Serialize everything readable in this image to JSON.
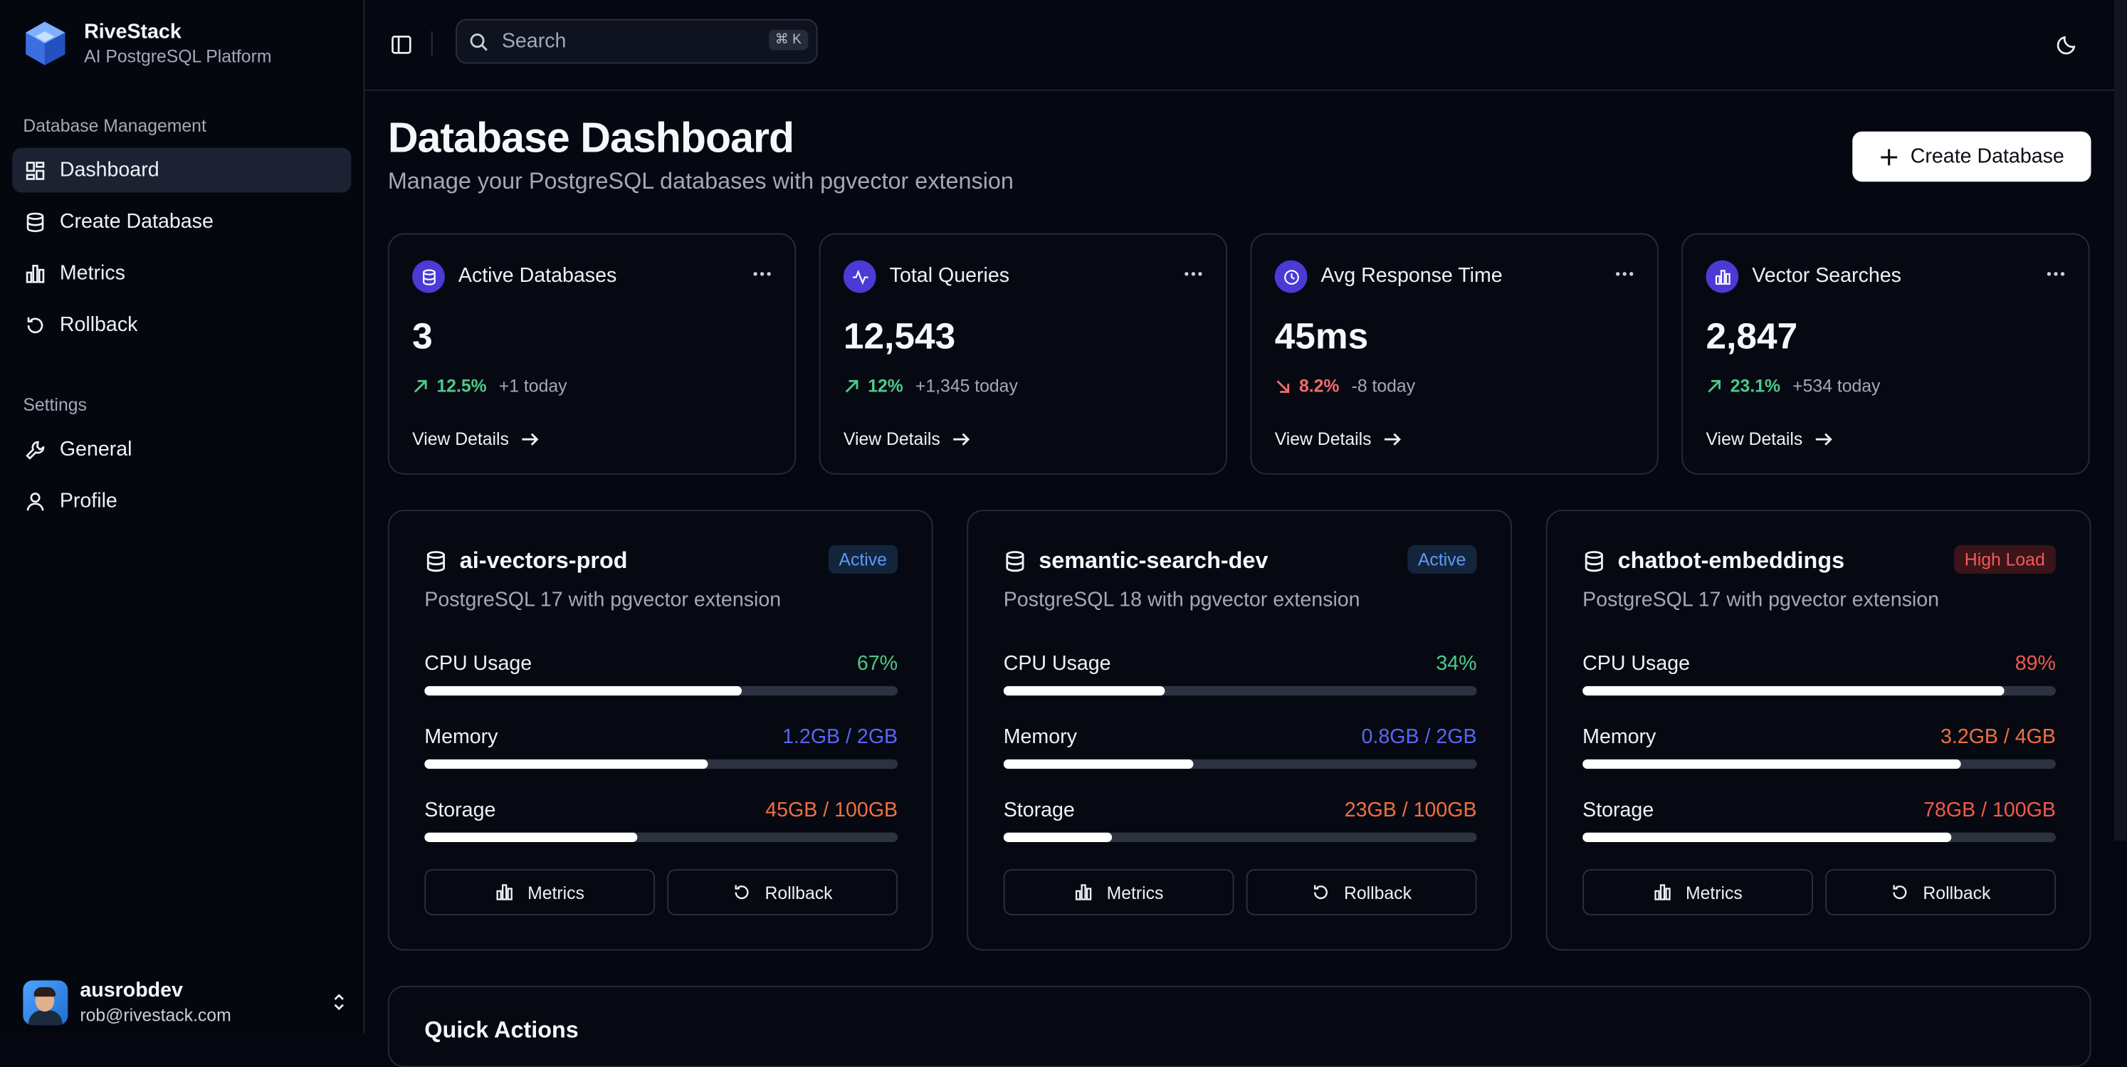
{
  "brand": {
    "name": "RiveStack",
    "subtitle": "AI PostgreSQL Platform"
  },
  "sidebar": {
    "sections": [
      {
        "title": "Database Management",
        "items": [
          {
            "label": "Dashboard",
            "icon": "dashboard-icon",
            "active": true
          },
          {
            "label": "Create Database",
            "icon": "database-icon"
          },
          {
            "label": "Metrics",
            "icon": "bar-chart-icon"
          },
          {
            "label": "Rollback",
            "icon": "rollback-icon"
          }
        ]
      },
      {
        "title": "Settings",
        "items": [
          {
            "label": "General",
            "icon": "wrench-icon"
          },
          {
            "label": "Profile",
            "icon": "user-icon"
          }
        ]
      }
    ]
  },
  "user": {
    "name": "ausrobdev",
    "email": "rob@rivestack.com"
  },
  "header": {
    "search_placeholder": "Search",
    "shortcut": "⌘ K"
  },
  "page": {
    "title": "Database Dashboard",
    "subtitle": "Manage your PostgreSQL databases with pgvector extension",
    "create_label": "Create Database"
  },
  "stats": [
    {
      "label": "Active Databases",
      "value": "3",
      "change": "12.5%",
      "direction": "up",
      "today": "+1 today",
      "link": "View Details",
      "icon": "database-icon"
    },
    {
      "label": "Total Queries",
      "value": "12,543",
      "change": "12%",
      "direction": "up",
      "today": "+1,345 today",
      "link": "View Details",
      "icon": "activity-icon"
    },
    {
      "label": "Avg Response Time",
      "value": "45ms",
      "change": "8.2%",
      "direction": "down",
      "today": "-8 today",
      "link": "View Details",
      "icon": "clock-icon"
    },
    {
      "label": "Vector Searches",
      "value": "2,847",
      "change": "23.1%",
      "direction": "up",
      "today": "+534 today",
      "link": "View Details",
      "icon": "bar-chart-icon"
    }
  ],
  "databases": [
    {
      "name": "ai-vectors-prod",
      "status": "Active",
      "description": "PostgreSQL 17 with pgvector extension",
      "metrics": [
        {
          "label": "CPU Usage",
          "value": "67%",
          "level": 0.67,
          "color": "green"
        },
        {
          "label": "Memory",
          "value": "1.2GB / 2GB",
          "level": 0.6,
          "color": "blue"
        },
        {
          "label": "Storage",
          "value": "45GB / 100GB",
          "level": 0.45,
          "color": "orange"
        }
      ],
      "metrics_label": "Metrics",
      "rollback_label": "Rollback"
    },
    {
      "name": "semantic-search-dev",
      "status": "Active",
      "description": "PostgreSQL 18 with pgvector extension",
      "metrics": [
        {
          "label": "CPU Usage",
          "value": "34%",
          "level": 0.34,
          "color": "green"
        },
        {
          "label": "Memory",
          "value": "0.8GB / 2GB",
          "level": 0.4,
          "color": "blue"
        },
        {
          "label": "Storage",
          "value": "23GB / 100GB",
          "level": 0.23,
          "color": "orange"
        }
      ],
      "metrics_label": "Metrics",
      "rollback_label": "Rollback"
    },
    {
      "name": "chatbot-embeddings",
      "status": "High Load",
      "description": "PostgreSQL 17 with pgvector extension",
      "metrics": [
        {
          "label": "CPU Usage",
          "value": "89%",
          "level": 0.89,
          "color": "red"
        },
        {
          "label": "Memory",
          "value": "3.2GB / 4GB",
          "level": 0.8,
          "color": "orange"
        },
        {
          "label": "Storage",
          "value": "78GB / 100GB",
          "level": 0.78,
          "color": "red"
        }
      ],
      "metrics_label": "Metrics",
      "rollback_label": "Rollback"
    }
  ],
  "quick_actions": {
    "title": "Quick Actions"
  },
  "colors": {
    "accent": "#4b3ad6",
    "up": "#4ec98a",
    "down": "#f06b6b",
    "background": "#050711"
  }
}
